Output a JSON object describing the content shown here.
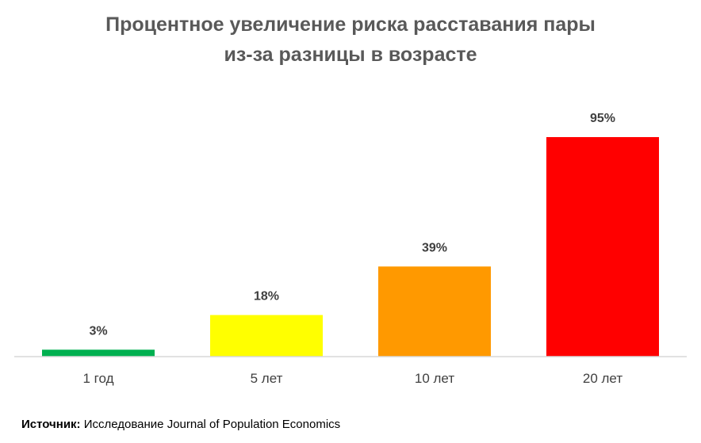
{
  "title_lines": [
    "Процентное увеличение риска расставания пары",
    "из-за разницы в возрасте"
  ],
  "source": {
    "label": "Источник:",
    "text": "Исследование Journal of Population Economics"
  },
  "chart_data": {
    "type": "bar",
    "title": "Процентное увеличение риска расставания пары из-за разницы в возрасте",
    "categories": [
      "1 год",
      "5 лет",
      "10 лет",
      "20 лет"
    ],
    "values": [
      3,
      18,
      39,
      95
    ],
    "data_labels": [
      "3%",
      "18%",
      "39%",
      "95%"
    ],
    "colors": [
      "#00b050",
      "#ffff00",
      "#ff9900",
      "#ff0000"
    ],
    "ylim": [
      0,
      95
    ],
    "grid": false,
    "legend": "none"
  }
}
